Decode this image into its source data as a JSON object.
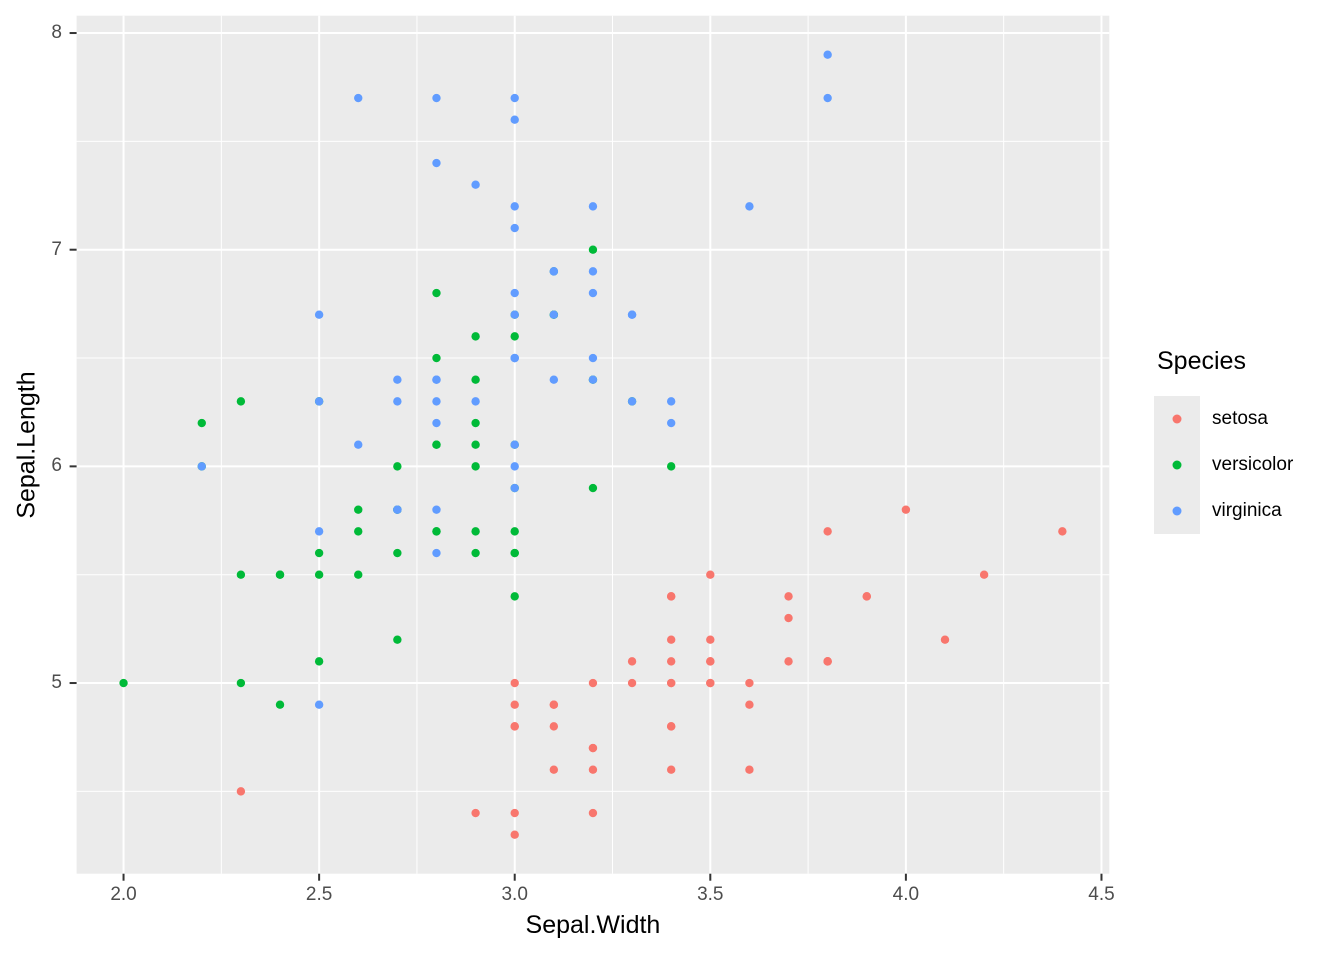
{
  "figure": {
    "background": "#FFFFFF",
    "panel_background": "#EBEBEB",
    "grid_color": "#FFFFFF",
    "tick_mark_color": "#333333",
    "tick_label_color": "#4D4D4D",
    "axis_title_color": "#000000"
  },
  "chart_data": {
    "type": "scatter",
    "title": "",
    "xlabel": "Sepal.Width",
    "ylabel": "Sepal.Length",
    "legend_title": "Species",
    "legend_position": "right",
    "grid": "major-and-minor",
    "xlim": [
      1.88,
      4.52
    ],
    "ylim": [
      4.12,
      8.08
    ],
    "x_ticks": [
      2.0,
      2.5,
      3.0,
      3.5,
      4.0,
      4.5
    ],
    "x_tick_labels": [
      "2.0",
      "2.5",
      "3.0",
      "3.5",
      "4.0",
      "4.5"
    ],
    "y_ticks": [
      5,
      6,
      7,
      8
    ],
    "y_tick_labels": [
      "5",
      "6",
      "7",
      "8"
    ],
    "x_minor_ticks": [
      2.25,
      2.75,
      3.25,
      3.75,
      4.25
    ],
    "y_minor_ticks": [
      4.5,
      5.5,
      6.5,
      7.5
    ],
    "point_radius_px": 4.2,
    "series": [
      {
        "name": "setosa",
        "color": "#F8766D",
        "points": [
          [
            3.5,
            5.1
          ],
          [
            3.0,
            4.9
          ],
          [
            3.2,
            4.7
          ],
          [
            3.1,
            4.6
          ],
          [
            3.6,
            5.0
          ],
          [
            3.9,
            5.4
          ],
          [
            3.4,
            4.6
          ],
          [
            3.4,
            5.0
          ],
          [
            2.9,
            4.4
          ],
          [
            3.1,
            4.9
          ],
          [
            3.7,
            5.4
          ],
          [
            3.4,
            4.8
          ],
          [
            3.0,
            4.8
          ],
          [
            3.0,
            4.3
          ],
          [
            4.0,
            5.8
          ],
          [
            4.4,
            5.7
          ],
          [
            3.9,
            5.4
          ],
          [
            3.5,
            5.1
          ],
          [
            3.8,
            5.7
          ],
          [
            3.8,
            5.1
          ],
          [
            3.4,
            5.4
          ],
          [
            3.7,
            5.1
          ],
          [
            3.6,
            4.6
          ],
          [
            3.3,
            5.1
          ],
          [
            3.4,
            4.8
          ],
          [
            3.0,
            5.0
          ],
          [
            3.4,
            5.0
          ],
          [
            3.5,
            5.2
          ],
          [
            3.4,
            5.2
          ],
          [
            3.2,
            4.7
          ],
          [
            3.1,
            4.8
          ],
          [
            3.4,
            5.4
          ],
          [
            4.1,
            5.2
          ],
          [
            4.2,
            5.5
          ],
          [
            3.1,
            4.9
          ],
          [
            3.2,
            5.0
          ],
          [
            3.5,
            5.5
          ],
          [
            3.6,
            4.9
          ],
          [
            3.0,
            4.4
          ],
          [
            3.4,
            5.1
          ],
          [
            3.5,
            5.0
          ],
          [
            2.3,
            4.5
          ],
          [
            3.2,
            4.4
          ],
          [
            3.5,
            5.0
          ],
          [
            3.8,
            5.1
          ],
          [
            3.0,
            4.8
          ],
          [
            3.8,
            5.1
          ],
          [
            3.2,
            4.6
          ],
          [
            3.7,
            5.3
          ],
          [
            3.3,
            5.0
          ]
        ]
      },
      {
        "name": "versicolor",
        "color": "#00BA38",
        "points": [
          [
            3.2,
            7.0
          ],
          [
            3.2,
            6.4
          ],
          [
            3.1,
            6.9
          ],
          [
            2.3,
            5.5
          ],
          [
            2.8,
            6.5
          ],
          [
            2.8,
            5.7
          ],
          [
            3.3,
            6.3
          ],
          [
            2.4,
            4.9
          ],
          [
            2.9,
            6.6
          ],
          [
            2.7,
            5.2
          ],
          [
            2.0,
            5.0
          ],
          [
            3.0,
            5.9
          ],
          [
            2.2,
            6.0
          ],
          [
            2.9,
            6.1
          ],
          [
            2.9,
            5.6
          ],
          [
            3.1,
            6.7
          ],
          [
            3.0,
            5.6
          ],
          [
            2.7,
            5.8
          ],
          [
            2.2,
            6.2
          ],
          [
            2.5,
            5.6
          ],
          [
            3.2,
            5.9
          ],
          [
            2.8,
            6.1
          ],
          [
            2.5,
            6.3
          ],
          [
            2.8,
            6.1
          ],
          [
            2.9,
            6.4
          ],
          [
            3.0,
            6.6
          ],
          [
            2.8,
            6.8
          ],
          [
            3.0,
            6.7
          ],
          [
            2.9,
            6.0
          ],
          [
            2.6,
            5.7
          ],
          [
            2.4,
            5.5
          ],
          [
            2.4,
            5.5
          ],
          [
            2.7,
            5.8
          ],
          [
            2.7,
            6.0
          ],
          [
            3.0,
            5.4
          ],
          [
            3.4,
            6.0
          ],
          [
            3.1,
            6.7
          ],
          [
            2.3,
            6.3
          ],
          [
            3.0,
            5.6
          ],
          [
            2.5,
            5.5
          ],
          [
            2.6,
            5.5
          ],
          [
            3.0,
            6.1
          ],
          [
            2.6,
            5.8
          ],
          [
            2.3,
            5.0
          ],
          [
            2.7,
            5.6
          ],
          [
            3.0,
            5.7
          ],
          [
            2.9,
            5.7
          ],
          [
            2.9,
            6.2
          ],
          [
            2.5,
            5.1
          ],
          [
            2.8,
            5.7
          ]
        ]
      },
      {
        "name": "virginica",
        "color": "#619CFF",
        "points": [
          [
            3.3,
            6.3
          ],
          [
            2.7,
            5.8
          ],
          [
            3.0,
            7.1
          ],
          [
            2.9,
            6.3
          ],
          [
            3.0,
            6.5
          ],
          [
            3.0,
            7.6
          ],
          [
            2.5,
            4.9
          ],
          [
            2.9,
            7.3
          ],
          [
            2.5,
            6.7
          ],
          [
            3.6,
            7.2
          ],
          [
            3.2,
            6.5
          ],
          [
            2.7,
            6.4
          ],
          [
            3.0,
            6.8
          ],
          [
            2.5,
            5.7
          ],
          [
            2.8,
            5.8
          ],
          [
            3.2,
            6.4
          ],
          [
            3.0,
            6.5
          ],
          [
            3.8,
            7.7
          ],
          [
            2.6,
            7.7
          ],
          [
            2.2,
            6.0
          ],
          [
            3.2,
            6.9
          ],
          [
            2.8,
            5.6
          ],
          [
            2.8,
            7.7
          ],
          [
            2.7,
            6.3
          ],
          [
            3.3,
            6.7
          ],
          [
            3.2,
            7.2
          ],
          [
            2.8,
            6.2
          ],
          [
            3.0,
            6.1
          ],
          [
            2.8,
            6.4
          ],
          [
            3.0,
            7.2
          ],
          [
            2.8,
            7.4
          ],
          [
            3.8,
            7.9
          ],
          [
            2.8,
            6.4
          ],
          [
            2.8,
            6.3
          ],
          [
            2.6,
            6.1
          ],
          [
            3.0,
            7.7
          ],
          [
            3.4,
            6.3
          ],
          [
            3.1,
            6.4
          ],
          [
            3.0,
            6.0
          ],
          [
            3.1,
            6.9
          ],
          [
            3.1,
            6.7
          ],
          [
            3.1,
            6.9
          ],
          [
            2.7,
            5.8
          ],
          [
            3.2,
            6.8
          ],
          [
            3.3,
            6.7
          ],
          [
            3.0,
            6.7
          ],
          [
            2.5,
            6.3
          ],
          [
            3.0,
            6.5
          ],
          [
            3.4,
            6.2
          ],
          [
            3.0,
            5.9
          ]
        ]
      }
    ]
  }
}
